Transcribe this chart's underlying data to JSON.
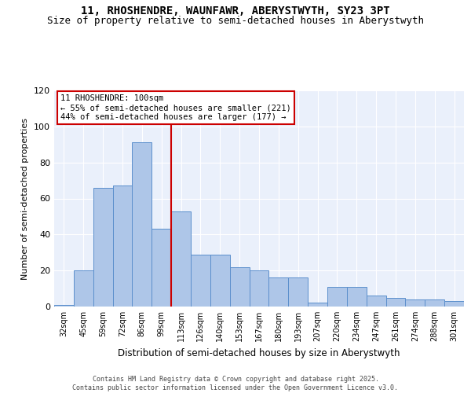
{
  "title1": "11, RHOSHENDRE, WAUNFAWR, ABERYSTWYTH, SY23 3PT",
  "title2": "Size of property relative to semi-detached houses in Aberystwyth",
  "xlabel": "Distribution of semi-detached houses by size in Aberystwyth",
  "ylabel": "Number of semi-detached properties",
  "categories": [
    "32sqm",
    "45sqm",
    "59sqm",
    "72sqm",
    "86sqm",
    "99sqm",
    "113sqm",
    "126sqm",
    "140sqm",
    "153sqm",
    "167sqm",
    "180sqm",
    "193sqm",
    "207sqm",
    "220sqm",
    "234sqm",
    "247sqm",
    "261sqm",
    "274sqm",
    "288sqm",
    "301sqm"
  ],
  "hist_values": [
    1,
    20,
    66,
    67,
    91,
    43,
    53,
    29,
    29,
    22,
    20,
    16,
    16,
    2,
    11,
    11,
    6,
    5,
    4,
    4,
    3
  ],
  "bar_color": "#aec6e8",
  "bar_edge_color": "#5b8fcc",
  "vline_color": "#cc0000",
  "annotation_text": "11 RHOSHENDRE: 100sqm\n← 55% of semi-detached houses are smaller (221)\n44% of semi-detached houses are larger (177) →",
  "annotation_box_color": "#cc0000",
  "ylim": [
    0,
    120
  ],
  "yticks": [
    0,
    20,
    40,
    60,
    80,
    100,
    120
  ],
  "background_color": "#eaf0fb",
  "footnote": "Contains HM Land Registry data © Crown copyright and database right 2025.\nContains public sector information licensed under the Open Government Licence v3.0.",
  "title1_fontsize": 10,
  "title2_fontsize": 9
}
